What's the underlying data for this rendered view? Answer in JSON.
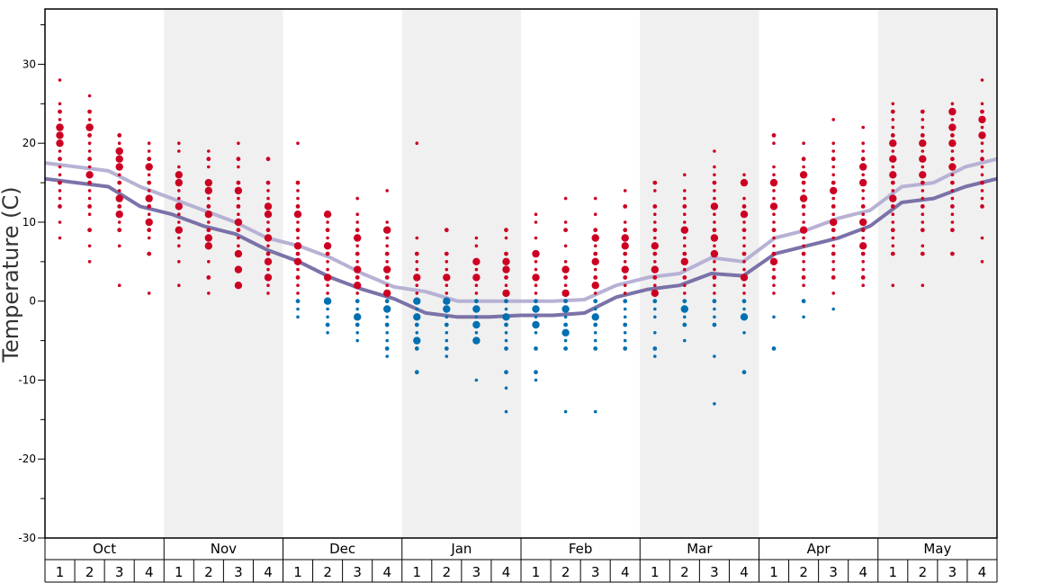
{
  "chart_data": {
    "type": "scatter",
    "title": "",
    "ylabel": "Temperature (C)",
    "ylim": [
      -30,
      37
    ],
    "y_ticks": [
      30,
      20,
      10,
      0,
      -10,
      -20,
      -30
    ],
    "y_tick_labels": [
      "30",
      "20",
      "10",
      "0",
      "-10",
      "-20",
      "-30"
    ],
    "months": [
      "Oct",
      "Nov",
      "Dec",
      "Jan",
      "Feb",
      "Mar",
      "Apr",
      "May"
    ],
    "weeks": [
      "1",
      "2",
      "3",
      "4"
    ],
    "colors": {
      "above_zero": "#cc0022",
      "below_zero": "#0070b0",
      "avg_max_line": "#b7b2d4",
      "avg_min_line": "#7a72a8",
      "shaded_band": "#f0f0f0"
    },
    "series": [
      {
        "name": "",
        "kind": "line",
        "role": "average high",
        "values": [
          17.5,
          17,
          16.5,
          14.5,
          13,
          11.5,
          10,
          8,
          7,
          5.5,
          3.5,
          1.8,
          1.2,
          0,
          0,
          0,
          0,
          0.2,
          2,
          3,
          3.5,
          5.5,
          5,
          8,
          9,
          10.5,
          11.5,
          14.5,
          15,
          17,
          18
        ]
      },
      {
        "name": "",
        "kind": "line",
        "role": "average low",
        "values": [
          15.5,
          15,
          14.5,
          12,
          11,
          9.5,
          8.5,
          6.5,
          5,
          3,
          1.5,
          0.3,
          -1.5,
          -2,
          -2,
          -1.8,
          -1.8,
          -1.5,
          0.5,
          1.5,
          2,
          3.5,
          3.2,
          6,
          7,
          8,
          9.5,
          12.5,
          13,
          14.5,
          15.5
        ]
      },
      {
        "name": "",
        "kind": "scatter",
        "role": "weekly temperature observations",
        "weeks": [
          {
            "values": [
              28,
              25,
              24,
              23,
              22,
              22,
              21,
              20,
              19,
              18,
              17,
              16,
              15,
              14,
              13,
              12,
              10,
              8
            ],
            "large": [
              22,
              21,
              20
            ]
          },
          {
            "values": [
              26,
              24,
              23,
              22,
              22,
              21,
              20,
              19,
              18,
              17,
              16,
              15,
              14,
              13,
              12,
              11,
              9,
              7,
              5
            ],
            "large": [
              22,
              16
            ]
          },
          {
            "values": [
              21,
              20,
              19,
              18,
              17,
              16,
              15,
              14,
              13,
              12,
              11,
              10,
              9,
              7,
              2
            ],
            "large": [
              19,
              18,
              17,
              13,
              11
            ]
          },
          {
            "values": [
              20,
              19,
              18,
              17,
              16,
              15,
              14,
              13,
              12,
              11,
              10,
              9,
              8,
              6,
              1
            ],
            "large": [
              17,
              13,
              10
            ]
          },
          {
            "values": [
              20,
              19,
              17,
              16,
              15,
              14,
              13,
              12,
              11,
              10,
              9,
              8,
              7,
              5,
              2
            ],
            "large": [
              16,
              15,
              12,
              9
            ]
          },
          {
            "values": [
              19,
              18,
              17,
              15,
              14,
              13,
              12,
              11,
              10,
              9,
              8,
              7,
              5,
              3,
              1
            ],
            "large": [
              15,
              14,
              11,
              8,
              7
            ]
          },
          {
            "values": [
              20,
              18,
              17,
              15,
              14,
              13,
              12,
              11,
              10,
              9,
              8,
              7,
              6,
              4,
              2
            ],
            "large": [
              14,
              10,
              6,
              4,
              2
            ]
          },
          {
            "values": [
              18,
              15,
              14,
              13,
              12,
              11,
              10,
              9,
              8,
              7,
              6,
              5,
              4,
              3,
              2,
              1
            ],
            "large": [
              12,
              11,
              8,
              5,
              3
            ]
          },
          {
            "values": [
              20,
              15,
              14,
              13,
              12,
              11,
              10,
              9,
              8,
              7,
              6,
              5,
              4,
              3,
              2,
              1,
              0,
              -1,
              -2
            ],
            "large": [
              11,
              7,
              5
            ]
          },
          {
            "values": [
              11,
              10,
              9,
              8,
              7,
              6,
              5,
              4,
              3,
              2,
              1,
              0,
              -1,
              -2,
              -3,
              -4
            ],
            "large": [
              11,
              7,
              3,
              0
            ]
          },
          {
            "values": [
              13,
              11,
              10,
              9,
              8,
              7,
              6,
              5,
              4,
              3,
              2,
              1,
              0,
              -1,
              -2,
              -3,
              -4,
              -5
            ],
            "large": [
              8,
              4,
              2,
              -2
            ]
          },
          {
            "values": [
              14,
              10,
              9,
              8,
              7,
              6,
              5,
              4,
              3,
              2,
              1,
              0,
              -1,
              -2,
              -3,
              -4,
              -5,
              -6,
              -7
            ],
            "large": [
              9,
              4,
              1,
              -1
            ]
          },
          {
            "values": [
              20,
              8,
              6,
              5,
              4,
              3,
              2,
              1,
              0,
              -1,
              -2,
              -3,
              -4,
              -5,
              -6,
              -9
            ],
            "large": [
              3,
              0,
              -2,
              -5
            ]
          },
          {
            "values": [
              9,
              6,
              5,
              4,
              3,
              2,
              1,
              0,
              -1,
              -2,
              -3,
              -4,
              -5,
              -6,
              -7
            ],
            "large": [
              3,
              0,
              -1
            ]
          },
          {
            "values": [
              8,
              7,
              5,
              4,
              3,
              2,
              1,
              0,
              -1,
              -2,
              -3,
              -4,
              -5,
              -10
            ],
            "large": [
              5,
              3,
              -1,
              -3,
              -5
            ]
          },
          {
            "values": [
              9,
              8,
              6,
              5,
              4,
              3,
              2,
              1,
              0,
              -1,
              -2,
              -3,
              -4,
              -5,
              -6,
              -9,
              -11,
              -14
            ],
            "large": [
              5,
              4,
              1,
              -2
            ]
          },
          {
            "values": [
              11,
              10,
              8,
              6,
              5,
              4,
              3,
              2,
              1,
              0,
              -1,
              -2,
              -3,
              -4,
              -6,
              -9,
              -10
            ],
            "large": [
              6,
              3,
              -1,
              -3
            ]
          },
          {
            "values": [
              13,
              10,
              9,
              7,
              5,
              4,
              3,
              2,
              1,
              0,
              -1,
              -2,
              -3,
              -4,
              -5,
              -6,
              -14
            ],
            "large": [
              4,
              1,
              -1,
              -4
            ]
          },
          {
            "values": [
              13,
              11,
              9,
              8,
              7,
              6,
              5,
              4,
              3,
              2,
              1,
              0,
              -1,
              -2,
              -3,
              -4,
              -5,
              -6,
              -14
            ],
            "large": [
              8,
              5,
              2,
              -2
            ]
          },
          {
            "values": [
              14,
              12,
              10,
              9,
              8,
              7,
              6,
              5,
              4,
              3,
              2,
              1,
              0,
              -1,
              -2,
              -3,
              -4,
              -5,
              -6
            ],
            "large": [
              8,
              7,
              4
            ]
          },
          {
            "values": [
              15,
              14,
              12,
              11,
              10,
              9,
              8,
              7,
              6,
              5,
              4,
              3,
              2,
              1,
              0,
              -1,
              -2,
              -4,
              -6,
              -7
            ],
            "large": [
              7,
              4,
              1
            ]
          },
          {
            "values": [
              16,
              14,
              13,
              12,
              11,
              10,
              9,
              8,
              7,
              6,
              5,
              4,
              3,
              2,
              1,
              0,
              -1,
              -2,
              -3,
              -5
            ],
            "large": [
              9,
              5,
              -1
            ]
          },
          {
            "values": [
              19,
              17,
              16,
              15,
              14,
              13,
              12,
              11,
              10,
              9,
              8,
              7,
              6,
              5,
              4,
              3,
              2,
              1,
              0,
              -1,
              -2,
              -3,
              -7,
              -13
            ],
            "large": [
              12,
              8,
              6
            ]
          },
          {
            "values": [
              16,
              15,
              13,
              12,
              11,
              10,
              9,
              8,
              7,
              6,
              5,
              4,
              3,
              2,
              1,
              0,
              -1,
              -2,
              -4,
              -9
            ],
            "large": [
              15,
              11,
              3,
              -2
            ]
          },
          {
            "values": [
              21,
              20,
              17,
              16,
              15,
              14,
              13,
              12,
              11,
              10,
              9,
              8,
              7,
              6,
              5,
              4,
              3,
              2,
              1,
              -2,
              -6
            ],
            "large": [
              15,
              12,
              5
            ]
          },
          {
            "values": [
              20,
              18,
              17,
              16,
              15,
              14,
              13,
              12,
              11,
              10,
              9,
              8,
              7,
              6,
              5,
              4,
              3,
              2,
              0,
              -2
            ],
            "large": [
              16,
              13,
              9
            ]
          },
          {
            "values": [
              23,
              20,
              19,
              18,
              17,
              16,
              15,
              14,
              13,
              12,
              11,
              10,
              9,
              8,
              7,
              6,
              5,
              4,
              3,
              1,
              -1
            ],
            "large": [
              14,
              10
            ]
          },
          {
            "values": [
              22,
              20,
              19,
              18,
              17,
              16,
              15,
              14,
              13,
              12,
              11,
              10,
              9,
              8,
              7,
              6,
              5,
              4,
              3,
              2
            ],
            "large": [
              17,
              15,
              10,
              7
            ]
          },
          {
            "values": [
              25,
              24,
              23,
              22,
              21,
              20,
              19,
              18,
              17,
              16,
              15,
              14,
              13,
              12,
              11,
              10,
              9,
              8,
              7,
              6,
              2
            ],
            "large": [
              20,
              18,
              16,
              13
            ]
          },
          {
            "values": [
              24,
              23,
              22,
              21,
              20,
              19,
              18,
              17,
              16,
              15,
              14,
              13,
              12,
              11,
              10,
              9,
              7,
              6,
              2
            ],
            "large": [
              20,
              18,
              16
            ]
          },
          {
            "values": [
              25,
              24,
              23,
              22,
              21,
              20,
              19,
              18,
              17,
              16,
              15,
              14,
              13,
              12,
              11,
              10,
              9,
              6
            ],
            "large": [
              24,
              22,
              20,
              17
            ]
          },
          {
            "values": [
              28,
              25,
              24,
              23,
              22,
              21,
              20,
              19,
              18,
              17,
              16,
              15,
              14,
              13,
              12,
              8,
              5
            ],
            "large": [
              23,
              21
            ]
          }
        ]
      }
    ]
  }
}
